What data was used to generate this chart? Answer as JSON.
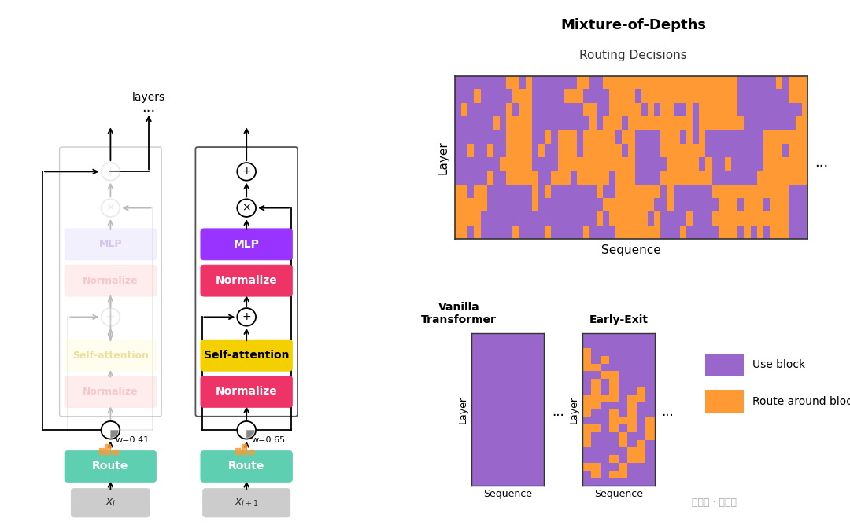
{
  "bg_color": "#ffffff",
  "purple_color": "#9966cc",
  "orange_color": "#ff9933",
  "teal_color": "#5ecfb1",
  "mlp_color": "#9933ff",
  "normalize_color": "#ee3366",
  "self_attention_color": "#f5d000",
  "input_box_color": "#cccccc",
  "faded_mlp_fill": "#ddd6fe",
  "faded_mlp_text": "#9977cc",
  "faded_normalize_fill": "#ffcccc",
  "faded_normalize_text": "#dd8888",
  "faded_selfattn_fill": "#fffacc",
  "faded_selfattn_text": "#ccaa00",
  "faded_color": "#bbbbbb",
  "title": "Mixture-of-Depths",
  "subtitle": "Routing Decisions",
  "vanilla_label": "Vanilla\nTransformer",
  "early_exit_label": "Early-Exit",
  "use_block_label": "Use block",
  "route_label": "Route around block",
  "sequence_label": "Sequence",
  "layer_label": "Layer",
  "layers_label": "layers",
  "w1": "w=0.41",
  "w2": "w=0.65"
}
